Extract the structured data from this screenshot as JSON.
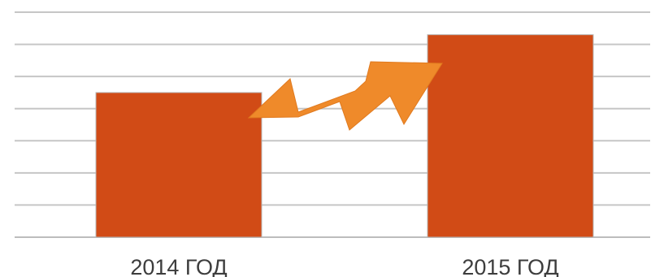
{
  "chart_data": {
    "type": "bar",
    "categories": [
      "2014 ГОД",
      "2015 ГОД"
    ],
    "values": [
      45,
      63
    ],
    "title": "",
    "xlabel": "",
    "ylabel": "",
    "ylim": [
      0,
      70
    ],
    "grid": true,
    "legend": "none",
    "bar_color": "#d14b16",
    "arrow_color": "#ef8a2a",
    "annotations": [
      {
        "kind": "zigzag-arrow",
        "from_category": "2014 ГОД",
        "to_category": "2015 ГОД"
      }
    ]
  }
}
